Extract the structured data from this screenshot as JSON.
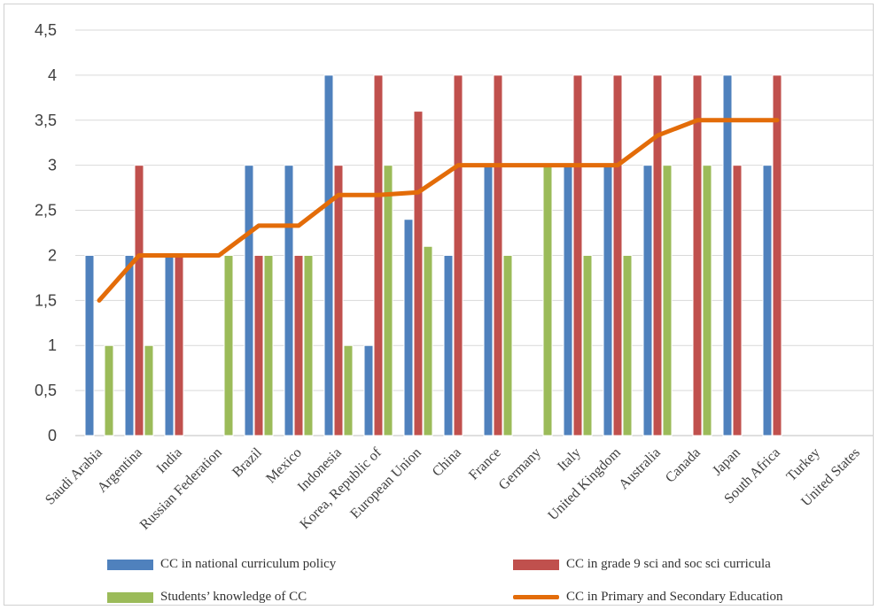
{
  "chart_data": {
    "type": "bar",
    "categories": [
      "Saudi Arabia",
      "Argentina",
      "India",
      "Russian Federation",
      "Brazil",
      "Mexico",
      "Indonesia",
      "Korea, Republic of",
      "European Union",
      "China",
      "France",
      "Germany",
      "Italy",
      "United Kingdom",
      "Australia",
      "Canada",
      "Japan",
      "South Africa",
      "Turkey",
      "United States"
    ],
    "ylim": [
      0,
      4.5
    ],
    "yticks": [
      "0",
      "0,5",
      "1",
      "1,5",
      "2",
      "2,5",
      "3",
      "3,5",
      "4",
      "4,5"
    ],
    "grid": true,
    "legend_position": "bottom",
    "series": [
      {
        "name": "CC in national curriculum policy",
        "kind": "bar",
        "color": "#4f81bd",
        "values": [
          2,
          2,
          2,
          0,
          3,
          3,
          4,
          1,
          2.4,
          2,
          3,
          0,
          3,
          3,
          3,
          0,
          4,
          3,
          0,
          0
        ]
      },
      {
        "name": "CC in grade 9 sci and soc sci curricula",
        "kind": "bar",
        "color": "#c0504d",
        "values": [
          0,
          3,
          2,
          0,
          2,
          2,
          3,
          4,
          3.6,
          4,
          4,
          0,
          4,
          4,
          4,
          4,
          3,
          4,
          0,
          0
        ]
      },
      {
        "name": "Students’ knowledge of CC",
        "kind": "bar",
        "color": "#9bbb59",
        "values": [
          1,
          1,
          0,
          2,
          2,
          2,
          1,
          3,
          2.1,
          0,
          2,
          3,
          2,
          2,
          3,
          3,
          0,
          0,
          0,
          0
        ]
      },
      {
        "name": "CC in Primary and Secondary Education",
        "kind": "line",
        "color": "#e36c09",
        "values": [
          1.5,
          2,
          2,
          2,
          2.33,
          2.33,
          2.67,
          2.67,
          2.7,
          3,
          3,
          3,
          3,
          3,
          3.33,
          3.5,
          3.5,
          3.5,
          null,
          null
        ]
      }
    ]
  }
}
